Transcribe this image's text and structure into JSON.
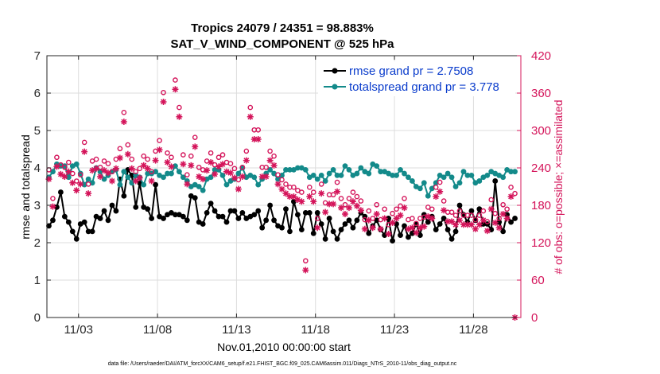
{
  "chart_data": {
    "type": "line",
    "title": "Tropics 24079 / 24351 = 98.883%",
    "subtitle": "SAT_V_WIND_COMPONENT @ 525 hPa",
    "xlabel": "Nov.01,2010 00:00:00 start",
    "ylabel_left": "rmse and totalspread",
    "ylabel_right": "# of obs: o=possible; ×=assimilated",
    "footer": "data file: /Users/raeder/DAI/ATM_forcXX/CAM6_setup/f.e21.FHIST_BGC.f09_025.CAM6assim.011/Diags_NTrS_2010-11/obs_diag_output.nc",
    "xlim": [
      1,
      31
    ],
    "ylim_left": [
      0,
      7
    ],
    "ylim_right": [
      0,
      420
    ],
    "x_ticks": [
      3,
      8,
      13,
      18,
      23,
      28
    ],
    "x_tick_labels": [
      "11/03",
      "11/08",
      "11/13",
      "11/18",
      "11/23",
      "11/28"
    ],
    "y_ticks_left": [
      0,
      1,
      2,
      3,
      4,
      5,
      6,
      7
    ],
    "y_ticks_right": [
      0,
      60,
      120,
      180,
      240,
      300,
      360,
      420
    ],
    "legend_position": "top-right",
    "colors": {
      "rmse": "#000000",
      "spread": "#138a8a",
      "obs": "#d4145a",
      "right_axis": "#d4145a",
      "legend_text": "#0a3ccc"
    },
    "x": [
      1.125,
      1.375,
      1.625,
      1.875,
      2.125,
      2.375,
      2.625,
      2.875,
      3.125,
      3.375,
      3.625,
      3.875,
      4.125,
      4.375,
      4.625,
      4.875,
      5.125,
      5.375,
      5.625,
      5.875,
      6.125,
      6.375,
      6.625,
      6.875,
      7.125,
      7.375,
      7.625,
      7.875,
      8.125,
      8.375,
      8.625,
      8.875,
      9.125,
      9.375,
      9.625,
      9.875,
      10.125,
      10.375,
      10.625,
      10.875,
      11.125,
      11.375,
      11.625,
      11.875,
      12.125,
      12.375,
      12.625,
      12.875,
      13.125,
      13.375,
      13.625,
      13.875,
      14.125,
      14.375,
      14.625,
      14.875,
      15.125,
      15.375,
      15.625,
      15.875,
      16.125,
      16.375,
      16.625,
      16.875,
      17.125,
      17.375,
      17.625,
      17.875,
      18.125,
      18.375,
      18.625,
      18.875,
      19.125,
      19.375,
      19.625,
      19.875,
      20.125,
      20.375,
      20.625,
      20.875,
      21.125,
      21.375,
      21.625,
      21.875,
      22.125,
      22.375,
      22.625,
      22.875,
      23.125,
      23.375,
      23.625,
      23.875,
      24.125,
      24.375,
      24.625,
      24.875,
      25.125,
      25.375,
      25.625,
      25.875,
      26.125,
      26.375,
      26.625,
      26.875,
      27.125,
      27.375,
      27.625,
      27.875,
      28.125,
      28.375,
      28.625,
      28.875,
      29.125,
      29.375,
      29.625,
      29.875,
      30.125,
      30.375,
      30.625
    ],
    "series": [
      {
        "name": "rmse grand pr = 2.7508",
        "axis": "left",
        "values": [
          2.45,
          2.6,
          2.95,
          3.35,
          2.7,
          2.55,
          2.3,
          2.1,
          2.5,
          2.55,
          2.3,
          2.3,
          2.7,
          2.65,
          2.85,
          2.6,
          3.0,
          2.85,
          3.7,
          3.25,
          3.95,
          3.8,
          2.95,
          3.6,
          2.95,
          2.9,
          2.65,
          3.55,
          2.7,
          2.65,
          2.75,
          2.8,
          2.75,
          2.75,
          2.7,
          2.6,
          3.25,
          3.2,
          2.55,
          2.5,
          2.8,
          3.05,
          2.85,
          2.7,
          2.7,
          2.55,
          2.85,
          2.85,
          2.65,
          2.8,
          2.65,
          2.7,
          2.75,
          2.85,
          2.4,
          2.6,
          3.0,
          2.6,
          2.45,
          2.4,
          2.9,
          2.3,
          3.1,
          2.75,
          2.35,
          2.8,
          2.8,
          2.25,
          2.8,
          2.5,
          2.1,
          2.65,
          2.3,
          2.1,
          2.35,
          2.5,
          2.6,
          2.4,
          2.6,
          2.8,
          2.7,
          2.25,
          2.45,
          2.6,
          2.35,
          2.2,
          2.65,
          2.05,
          2.5,
          2.2,
          2.45,
          2.15,
          2.25,
          2.5,
          2.2,
          2.75,
          2.55,
          2.7,
          2.35,
          2.5,
          2.65,
          2.35,
          2.1,
          2.3,
          3.0,
          2.75,
          2.55,
          2.85,
          2.6,
          2.9,
          2.5,
          2.5,
          2.35,
          3.65,
          2.55,
          2.3,
          2.75,
          2.55,
          2.65
        ]
      },
      {
        "name": "totalspread grand pr = 3.778",
        "axis": "left",
        "values": [
          3.75,
          3.9,
          4.1,
          4.05,
          4.05,
          3.75,
          4.05,
          4.1,
          3.85,
          3.55,
          3.7,
          3.6,
          4.0,
          3.9,
          3.7,
          3.8,
          3.9,
          3.95,
          3.55,
          3.9,
          3.75,
          3.6,
          3.8,
          3.75,
          3.55,
          3.85,
          3.85,
          3.9,
          3.8,
          3.75,
          3.85,
          3.85,
          4.05,
          3.9,
          3.75,
          3.65,
          3.5,
          3.55,
          3.5,
          3.4,
          3.7,
          3.75,
          3.95,
          3.95,
          3.8,
          3.55,
          3.65,
          3.7,
          3.85,
          4.0,
          3.75,
          3.8,
          3.75,
          3.55,
          3.7,
          3.85,
          3.95,
          3.85,
          3.7,
          3.8,
          3.95,
          3.95,
          3.95,
          4.0,
          4.0,
          3.95,
          3.75,
          3.8,
          3.7,
          3.8,
          3.65,
          3.85,
          3.95,
          3.8,
          3.8,
          4.05,
          3.95,
          3.8,
          3.85,
          4.0,
          3.9,
          3.85,
          4.1,
          4.05,
          3.9,
          3.9,
          3.85,
          3.8,
          3.8,
          3.95,
          3.85,
          3.75,
          3.65,
          3.5,
          3.45,
          3.6,
          3.25,
          3.45,
          3.6,
          3.8,
          3.75,
          3.85,
          3.75,
          3.5,
          3.6,
          3.9,
          3.8,
          3.8,
          3.6,
          3.65,
          3.75,
          3.8,
          3.9,
          3.85,
          3.8,
          3.75,
          3.95,
          3.9,
          3.9
        ]
      }
    ],
    "obs_possible": {
      "axis": "right",
      "marker": "circle",
      "values": [
        228,
        182,
        248,
        236,
        232,
        240,
        222,
        210,
        220,
        272,
        205,
        242,
        245,
        232,
        242,
        238,
        225,
        245,
        262,
        320,
        268,
        245,
        225,
        230,
        250,
        245,
        225,
        258,
        275,
        352,
        255,
        248,
        372,
        328,
        252,
        220,
        250,
        280,
        232,
        228,
        242,
        255,
        236,
        248,
        252,
        240,
        238,
        230,
        212,
        232,
        258,
        328,
        292,
        292,
        232,
        232,
        258,
        250,
        220,
        212,
        205,
        200,
        200,
        195,
        192,
        82,
        200,
        192,
        150,
        205,
        175,
        188,
        188,
        208,
        182,
        172,
        182,
        192,
        185,
        178,
        148,
        162,
        150,
        172,
        148,
        165,
        140,
        158,
        165,
        170,
        182,
        148,
        150,
        142,
        150,
        152,
        168,
        165,
        200,
        208,
        178,
        160,
        160,
        155,
        162,
        155,
        155,
        155,
        148,
        155,
        162,
        145,
        180,
        158,
        150,
        172,
        165,
        200,
        190
      ]
    },
    "obs_assimilated": {
      "axis": "right",
      "marker": "asterisk",
      "values": [
        222,
        178,
        242,
        230,
        226,
        234,
        216,
        204,
        214,
        266,
        199,
        236,
        239,
        226,
        236,
        232,
        219,
        239,
        256,
        314,
        262,
        239,
        219,
        224,
        244,
        239,
        219,
        252,
        269,
        346,
        249,
        242,
        366,
        322,
        246,
        214,
        244,
        274,
        226,
        222,
        236,
        249,
        230,
        242,
        246,
        234,
        232,
        224,
        206,
        226,
        252,
        322,
        286,
        286,
        226,
        226,
        252,
        244,
        214,
        206,
        199,
        194,
        194,
        189,
        186,
        76,
        194,
        186,
        144,
        199,
        169,
        182,
        182,
        202,
        176,
        166,
        176,
        186,
        179,
        172,
        142,
        156,
        144,
        166,
        142,
        159,
        134,
        152,
        159,
        164,
        176,
        142,
        144,
        136,
        144,
        146,
        162,
        159,
        194,
        202,
        172,
        154,
        154,
        149,
        156,
        149,
        149,
        149,
        142,
        149,
        156,
        139,
        174,
        152,
        144,
        166,
        159,
        194,
        0
      ]
    }
  }
}
